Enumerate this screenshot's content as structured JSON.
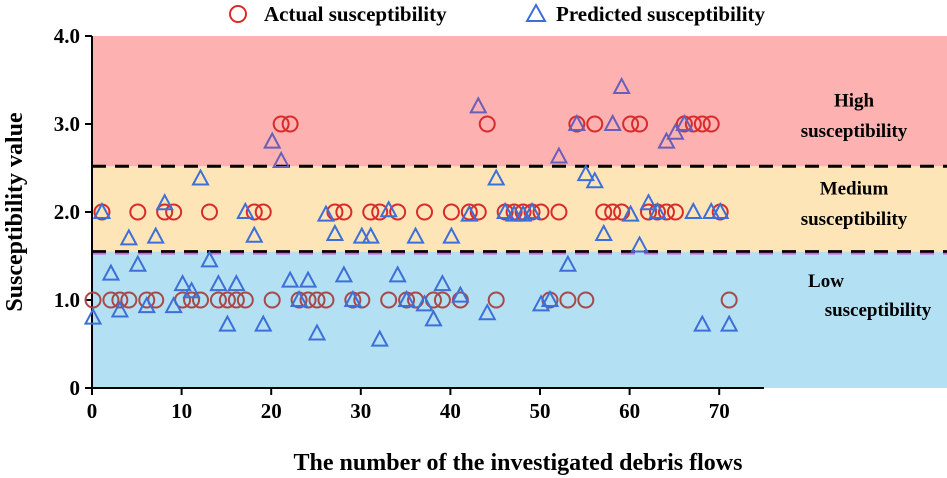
{
  "chart_data": {
    "type": "scatter",
    "xlabel": "The number of the investigated  debris flows",
    "ylabel": "Susceptibility value",
    "xlim": [
      0,
      75
    ],
    "ylim": [
      0,
      4
    ],
    "xticks": [
      "0",
      "10",
      "20",
      "30",
      "40",
      "50",
      "60",
      "70"
    ],
    "yticks": [
      "0",
      "1.0",
      "2.0",
      "3.0",
      "4.0"
    ],
    "legend_position": "top-center",
    "zones": [
      {
        "name": "low",
        "label_line1": "Low",
        "label_line2": "susceptibility",
        "from": 0,
        "to": 1.55,
        "color": "#b3e1f3",
        "label_color": "#1a3a5c"
      },
      {
        "name": "medium",
        "label_line1": "Medium",
        "label_line2": "susceptibility",
        "from": 1.55,
        "to": 2.52,
        "color": "#fde5b8",
        "label_color": "#000000"
      },
      {
        "name": "high",
        "label_line1": "High",
        "label_line2": "susceptibility",
        "from": 2.52,
        "to": 4.0,
        "color": "#fdb1b1",
        "label_color": "#000000"
      }
    ],
    "thresholds": [
      1.55,
      2.52
    ],
    "series": [
      {
        "name": "Actual susceptibility",
        "marker": "circle",
        "color": "#d92b2b",
        "x": [
          0,
          1,
          2,
          3,
          4,
          5,
          6,
          7,
          8,
          9,
          10,
          11,
          12,
          13,
          14,
          15,
          16,
          17,
          18,
          19,
          20,
          21,
          22,
          23,
          24,
          25,
          26,
          27,
          28,
          29,
          30,
          31,
          32,
          33,
          34,
          35,
          36,
          37,
          38,
          39,
          40,
          41,
          42,
          43,
          44,
          45,
          46,
          47,
          48,
          49,
          50,
          51,
          52,
          53,
          54,
          55,
          56,
          57,
          58,
          59,
          60,
          61,
          62,
          63,
          64,
          65,
          66,
          67,
          68,
          69,
          70,
          71
        ],
        "y": [
          1,
          2,
          1,
          1,
          1,
          2,
          1,
          1,
          2,
          2,
          1,
          1,
          1,
          2,
          1,
          1,
          1,
          1,
          2,
          2,
          1,
          3,
          3,
          1,
          1,
          1,
          1,
          2,
          2,
          1,
          1,
          2,
          2,
          1,
          2,
          1,
          1,
          2,
          1,
          1,
          2,
          1,
          2,
          2,
          3,
          1,
          2,
          2,
          2,
          2,
          2,
          1,
          2,
          1,
          3,
          1,
          3,
          2,
          2,
          2,
          3,
          3,
          2,
          2,
          2,
          2,
          3,
          3,
          3,
          3,
          2,
          1
        ],
        "color_alt": "#a84848"
      },
      {
        "name": "Predicted susceptibility",
        "marker": "triangle",
        "color": "#3d6fd9",
        "x": [
          0,
          1,
          2,
          3,
          4,
          5,
          6,
          7,
          8,
          9,
          10,
          11,
          12,
          13,
          14,
          15,
          16,
          17,
          18,
          19,
          20,
          21,
          22,
          23,
          24,
          25,
          26,
          27,
          28,
          29,
          30,
          31,
          32,
          33,
          34,
          35,
          36,
          37,
          38,
          39,
          40,
          41,
          42,
          43,
          44,
          45,
          46,
          47,
          48,
          49,
          50,
          51,
          52,
          53,
          54,
          55,
          56,
          57,
          58,
          59,
          60,
          61,
          62,
          63,
          64,
          65,
          66,
          67,
          68,
          69,
          70,
          71
        ],
        "y": [
          0.8,
          2.0,
          1.3,
          0.88,
          1.7,
          1.4,
          0.93,
          1.72,
          2.1,
          0.93,
          1.18,
          1.1,
          2.38,
          1.45,
          1.18,
          0.72,
          1.18,
          2.0,
          1.73,
          0.72,
          2.8,
          2.58,
          1.22,
          1.0,
          1.22,
          0.62,
          1.97,
          1.75,
          1.28,
          1.0,
          1.72,
          1.72,
          0.55,
          2.02,
          1.28,
          1.0,
          1.72,
          0.95,
          0.78,
          1.18,
          1.72,
          1.05,
          1.97,
          3.2,
          0.85,
          2.38,
          2.0,
          1.97,
          1.97,
          2.0,
          0.95,
          1.0,
          2.63,
          1.4,
          3.0,
          2.43,
          2.35,
          1.75,
          3.0,
          3.42,
          1.97,
          1.62,
          2.1,
          2.0,
          2.8,
          2.9,
          3.0,
          2.0,
          0.72,
          2.0,
          2.0,
          0.72
        ]
      }
    ]
  }
}
